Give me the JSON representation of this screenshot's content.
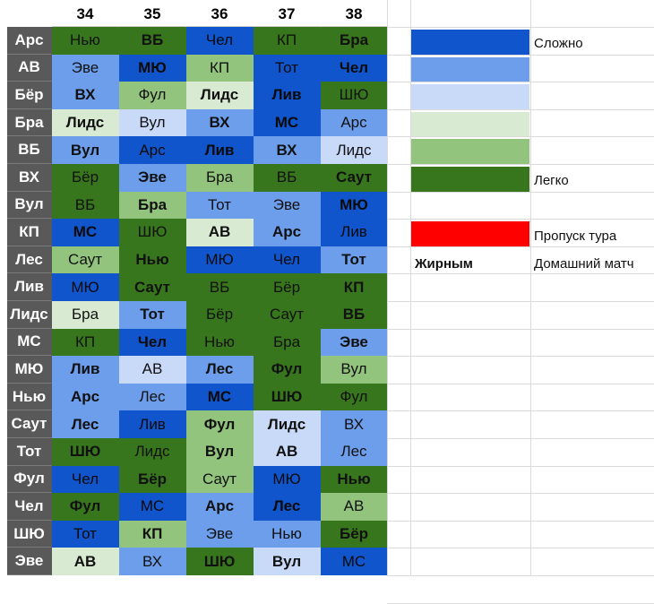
{
  "colors": {
    "d": "#1155cc",
    "m": "#6d9eeb",
    "l": "#c9daf8",
    "lg": "#d9ead3",
    "mg": "#93c47d",
    "dg": "#38761d",
    "red": "#ff0000",
    "rowlabel": "#595959"
  },
  "columns": [
    "34",
    "35",
    "36",
    "37",
    "38"
  ],
  "rows": [
    {
      "team": "Арс",
      "cells": [
        [
          "Нью",
          "dg",
          0
        ],
        [
          "ВБ",
          "dg",
          1
        ],
        [
          "Чел",
          "d",
          0
        ],
        [
          "КП",
          "dg",
          0
        ],
        [
          "Бра",
          "dg",
          1
        ]
      ]
    },
    {
      "team": "АВ",
      "cells": [
        [
          "Эве",
          "m",
          0
        ],
        [
          "МЮ",
          "d",
          1
        ],
        [
          "КП",
          "mg",
          0
        ],
        [
          "Тот",
          "d",
          0
        ],
        [
          "Чел",
          "d",
          1
        ]
      ]
    },
    {
      "team": "Бёр",
      "cells": [
        [
          "ВХ",
          "m",
          1
        ],
        [
          "Фул",
          "mg",
          0
        ],
        [
          "Лидс",
          "lg",
          1
        ],
        [
          "Лив",
          "d",
          1
        ],
        [
          "ШЮ",
          "dg",
          0
        ]
      ]
    },
    {
      "team": "Бра",
      "cells": [
        [
          "Лидс",
          "lg",
          1
        ],
        [
          "Вул",
          "l",
          0
        ],
        [
          "ВХ",
          "m",
          1
        ],
        [
          "МС",
          "d",
          1
        ],
        [
          "Арс",
          "m",
          0
        ]
      ]
    },
    {
      "team": "ВБ",
      "cells": [
        [
          "Вул",
          "m",
          1
        ],
        [
          "Арс",
          "d",
          0
        ],
        [
          "Лив",
          "d",
          1
        ],
        [
          "ВХ",
          "m",
          1
        ],
        [
          "Лидс",
          "l",
          0
        ]
      ]
    },
    {
      "team": "ВХ",
      "cells": [
        [
          "Бёр",
          "dg",
          0
        ],
        [
          "Эве",
          "m",
          1
        ],
        [
          "Бра",
          "mg",
          0
        ],
        [
          "ВБ",
          "dg",
          0
        ],
        [
          "Саут",
          "dg",
          1
        ]
      ]
    },
    {
      "team": "Вул",
      "cells": [
        [
          "ВБ",
          "dg",
          0
        ],
        [
          "Бра",
          "mg",
          1
        ],
        [
          "Тот",
          "m",
          0
        ],
        [
          "Эве",
          "m",
          0
        ],
        [
          "МЮ",
          "d",
          1
        ]
      ]
    },
    {
      "team": "КП",
      "cells": [
        [
          "МС",
          "d",
          1
        ],
        [
          "ШЮ",
          "dg",
          0
        ],
        [
          "АВ",
          "lg",
          1
        ],
        [
          "Арс",
          "m",
          1
        ],
        [
          "Лив",
          "d",
          0
        ]
      ]
    },
    {
      "team": "Лес",
      "cells": [
        [
          "Саут",
          "mg",
          0
        ],
        [
          "Нью",
          "dg",
          1
        ],
        [
          "МЮ",
          "d",
          0
        ],
        [
          "Чел",
          "d",
          0
        ],
        [
          "Тот",
          "m",
          1
        ]
      ]
    },
    {
      "team": "Лив",
      "cells": [
        [
          "МЮ",
          "d",
          0
        ],
        [
          "Саут",
          "dg",
          1
        ],
        [
          "ВБ",
          "dg",
          0
        ],
        [
          "Бёр",
          "dg",
          0
        ],
        [
          "КП",
          "dg",
          1
        ]
      ]
    },
    {
      "team": "Лидс",
      "cells": [
        [
          "Бра",
          "lg",
          0
        ],
        [
          "Тот",
          "m",
          1
        ],
        [
          "Бёр",
          "dg",
          0
        ],
        [
          "Саут",
          "dg",
          0
        ],
        [
          "ВБ",
          "dg",
          1
        ]
      ]
    },
    {
      "team": "МС",
      "cells": [
        [
          "КП",
          "dg",
          0
        ],
        [
          "Чел",
          "d",
          1
        ],
        [
          "Нью",
          "dg",
          0
        ],
        [
          "Бра",
          "dg",
          0
        ],
        [
          "Эве",
          "m",
          1
        ]
      ]
    },
    {
      "team": "МЮ",
      "cells": [
        [
          "Лив",
          "m",
          1
        ],
        [
          "АВ",
          "l",
          0
        ],
        [
          "Лес",
          "m",
          1
        ],
        [
          "Фул",
          "dg",
          1
        ],
        [
          "Вул",
          "mg",
          0
        ]
      ]
    },
    {
      "team": "Нью",
      "cells": [
        [
          "Арс",
          "m",
          1
        ],
        [
          "Лес",
          "m",
          0
        ],
        [
          "МС",
          "d",
          1
        ],
        [
          "ШЮ",
          "dg",
          1
        ],
        [
          "Фул",
          "dg",
          0
        ]
      ]
    },
    {
      "team": "Саут",
      "cells": [
        [
          "Лес",
          "m",
          1
        ],
        [
          "Лив",
          "d",
          0
        ],
        [
          "Фул",
          "mg",
          1
        ],
        [
          "Лидс",
          "l",
          1
        ],
        [
          "ВХ",
          "m",
          0
        ]
      ]
    },
    {
      "team": "Тот",
      "cells": [
        [
          "ШЮ",
          "dg",
          1
        ],
        [
          "Лидс",
          "dg",
          0
        ],
        [
          "Вул",
          "mg",
          1
        ],
        [
          "АВ",
          "l",
          1
        ],
        [
          "Лес",
          "m",
          0
        ]
      ]
    },
    {
      "team": "Фул",
      "cells": [
        [
          "Чел",
          "d",
          0
        ],
        [
          "Бёр",
          "dg",
          1
        ],
        [
          "Саут",
          "mg",
          0
        ],
        [
          "МЮ",
          "d",
          0
        ],
        [
          "Нью",
          "dg",
          1
        ]
      ]
    },
    {
      "team": "Чел",
      "cells": [
        [
          "Фул",
          "dg",
          1
        ],
        [
          "МС",
          "d",
          0
        ],
        [
          "Арс",
          "m",
          1
        ],
        [
          "Лес",
          "d",
          1
        ],
        [
          "АВ",
          "mg",
          0
        ]
      ]
    },
    {
      "team": "ШЮ",
      "cells": [
        [
          "Тот",
          "d",
          0
        ],
        [
          "КП",
          "mg",
          1
        ],
        [
          "Эве",
          "m",
          0
        ],
        [
          "Нью",
          "m",
          0
        ],
        [
          "Бёр",
          "dg",
          1
        ]
      ]
    },
    {
      "team": "Эве",
      "cells": [
        [
          "АВ",
          "lg",
          1
        ],
        [
          "ВХ",
          "m",
          0
        ],
        [
          "ШЮ",
          "dg",
          1
        ],
        [
          "Вул",
          "l",
          1
        ],
        [
          "МС",
          "d",
          0
        ]
      ]
    }
  ],
  "legend": {
    "hard": "Сложно",
    "easy": "Легко",
    "skip": "Пропуск тура",
    "bold_key": "Жирным",
    "home": "Домашний матч"
  }
}
